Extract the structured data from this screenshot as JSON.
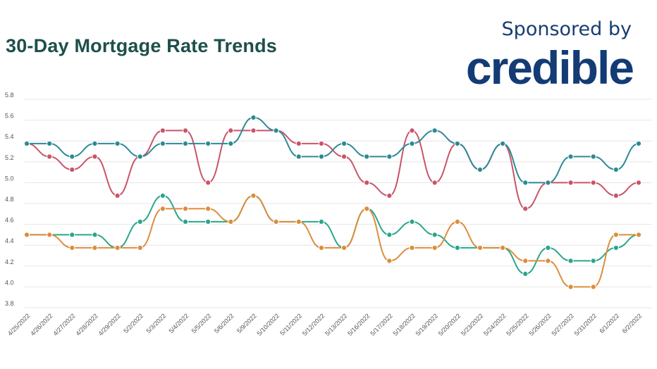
{
  "header": {
    "title": "30-Day Mortgage Rate Trends",
    "sponsor_label": "Sponsored by",
    "brand": "credible"
  },
  "chart_data": {
    "type": "line",
    "title": "30-Day Mortgage Rate Trends",
    "xlabel": "",
    "ylabel": "",
    "ylim": [
      3.8,
      5.8
    ],
    "yticks": [
      "5.8",
      "5.6",
      "5.4",
      "5.2",
      "5.0",
      "4.8",
      "4.6",
      "4.4",
      "4.2",
      "4.0",
      "3.8"
    ],
    "grid": true,
    "categories": [
      "4/25/2022",
      "4/26/2022",
      "4/27/2022",
      "4/28/2022",
      "4/29/2022",
      "5/2/2022",
      "5/3/2022",
      "5/4/2022",
      "5/5/2022",
      "5/6/2022",
      "5/9/2022",
      "5/10/2022",
      "5/11/2022",
      "5/12/2022",
      "5/13/2022",
      "5/16/2022",
      "5/17/2022",
      "5/18/2022",
      "5/19/2022",
      "5/20/2022",
      "5/23/2022",
      "5/24/2022",
      "5/25/2022",
      "5/26/2022",
      "5/27/2022",
      "5/31/2022",
      "6/1/2022",
      "6/2/2022"
    ],
    "series": [
      {
        "color": "#c95468",
        "values": [
          5.375,
          5.25,
          5.125,
          5.25,
          4.875,
          5.25,
          5.5,
          5.5,
          5.0,
          5.5,
          5.5,
          5.5,
          5.375,
          5.375,
          5.25,
          5.0,
          4.875,
          5.5,
          5.0,
          5.375,
          5.125,
          5.375,
          4.75,
          5.0,
          5.0,
          5.0,
          4.875,
          5.0
        ]
      },
      {
        "color": "#2b8a94",
        "values": [
          5.375,
          5.375,
          5.25,
          5.375,
          5.375,
          5.25,
          5.375,
          5.375,
          5.375,
          5.375,
          5.625,
          5.5,
          5.25,
          5.25,
          5.375,
          5.25,
          5.25,
          5.375,
          5.5,
          5.375,
          5.125,
          5.375,
          5.0,
          5.0,
          5.25,
          5.25,
          5.125,
          5.375
        ]
      },
      {
        "color": "#2aa68a",
        "values": [
          4.5,
          4.5,
          4.5,
          4.5,
          4.375,
          4.625,
          4.875,
          4.625,
          4.625,
          4.625,
          4.875,
          4.625,
          4.625,
          4.625,
          4.375,
          4.75,
          4.5,
          4.625,
          4.5,
          4.375,
          4.375,
          4.375,
          4.125,
          4.375,
          4.25,
          4.25,
          4.375,
          4.5
        ]
      },
      {
        "color": "#dc8d3c",
        "values": [
          4.5,
          4.5,
          4.375,
          4.375,
          4.375,
          4.375,
          4.75,
          4.75,
          4.75,
          4.625,
          4.875,
          4.625,
          4.625,
          4.375,
          4.375,
          4.75,
          4.25,
          4.375,
          4.375,
          4.625,
          4.375,
          4.375,
          4.25,
          4.25,
          4.0,
          4.0,
          4.5,
          4.5
        ]
      }
    ]
  }
}
